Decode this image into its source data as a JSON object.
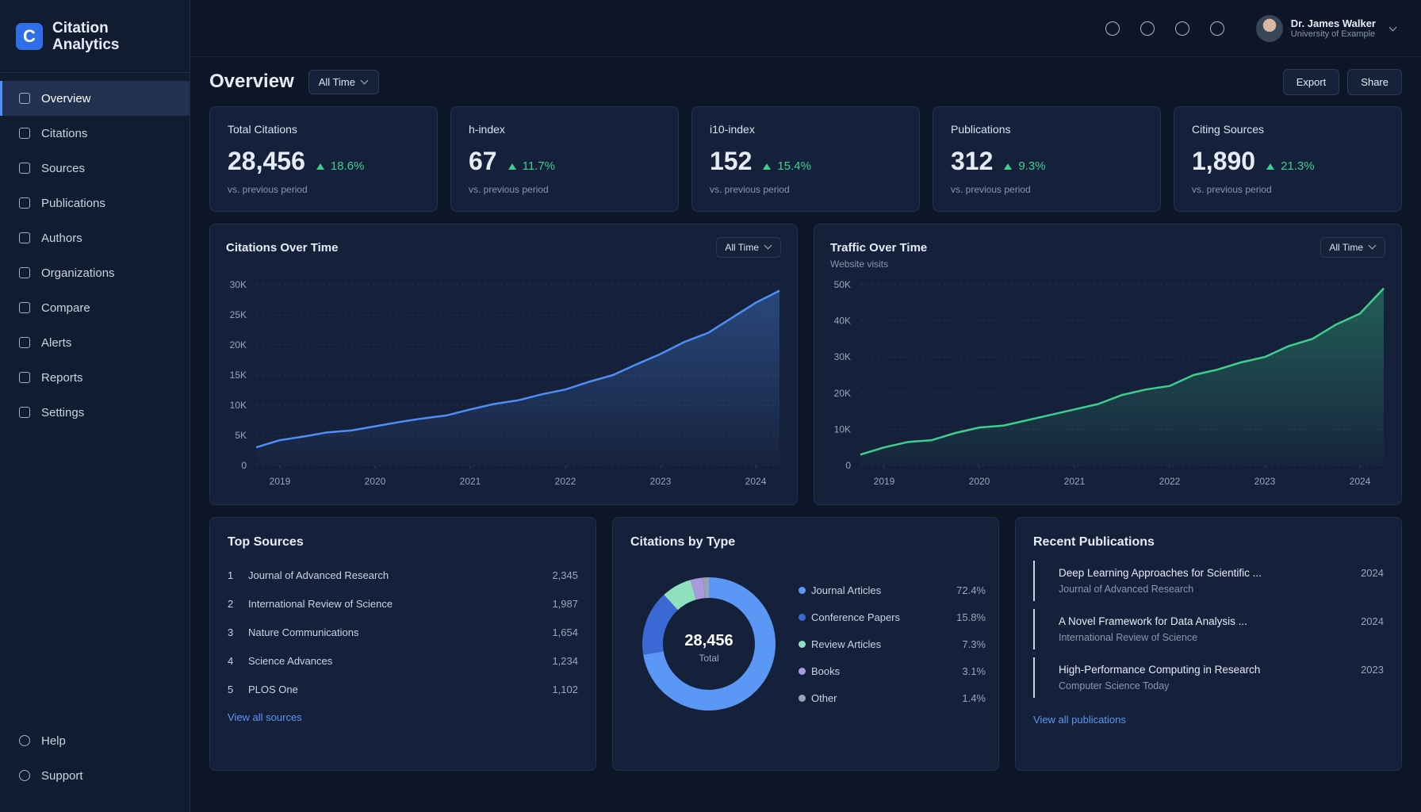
{
  "brand": {
    "logo": "C",
    "name": "Citation Analytics"
  },
  "nav": [
    "Overview",
    "Citations",
    "Sources",
    "Publications",
    "Authors",
    "Organizations",
    "Compare",
    "Alerts",
    "Reports",
    "Settings"
  ],
  "nav_bottom": [
    "Help",
    "Support"
  ],
  "user": {
    "name": "Dr. James Walker",
    "affiliation": "University of Example"
  },
  "header": {
    "title": "Overview",
    "filter": "All Time",
    "actions": [
      "Export",
      "Share"
    ]
  },
  "kpis": [
    {
      "label": "Total Citations",
      "value": "28,456",
      "change": "18.6%",
      "note": "vs. previous period"
    },
    {
      "label": "h-index",
      "value": "67",
      "change": "11.7%",
      "note": "vs. previous period"
    },
    {
      "label": "i10-index",
      "value": "152",
      "change": "15.4%",
      "note": "vs. previous period"
    },
    {
      "label": "Publications",
      "value": "312",
      "change": "9.3%",
      "note": "vs. previous period"
    },
    {
      "label": "Citing Sources",
      "value": "1,890",
      "change": "21.3%",
      "note": "vs. previous period"
    }
  ],
  "chart_data": [
    {
      "type": "line",
      "title": "Citations Over Time",
      "filter": "All Time",
      "color": "#4f8ef7",
      "x": [
        2018.75,
        2019,
        2019.25,
        2019.5,
        2019.75,
        2020,
        2020.25,
        2020.5,
        2020.75,
        2021,
        2021.25,
        2021.5,
        2021.75,
        2022,
        2022.25,
        2022.5,
        2022.75,
        2023,
        2023.25,
        2023.5,
        2023.75,
        2024,
        2024.25
      ],
      "values": [
        3000,
        4200,
        4800,
        5500,
        5800,
        6500,
        7200,
        7800,
        8300,
        9300,
        10200,
        10800,
        11800,
        12600,
        13900,
        15000,
        16800,
        18500,
        20500,
        22000,
        24500,
        27000,
        29000
      ],
      "xlim": [
        2018.75,
        2024.25
      ],
      "xticks": [
        2019,
        2020,
        2021,
        2022,
        2023,
        2024
      ],
      "ylim": [
        0,
        30000
      ],
      "yticks": [
        0,
        {
          "value": 5000,
          "label": "5K"
        },
        {
          "value": 10000,
          "label": "10K"
        },
        {
          "value": 15000,
          "label": "15K"
        },
        {
          "value": 20000,
          "label": "20K"
        },
        {
          "value": 25000,
          "label": "25K"
        },
        {
          "value": 30000,
          "label": "30K"
        }
      ],
      "grid": true
    },
    {
      "type": "line",
      "title": "Traffic Over Time",
      "subtitle": "Website visits",
      "filter": "All Time",
      "color": "#3ecf8e",
      "x": [
        2018.75,
        2019,
        2019.25,
        2019.5,
        2019.75,
        2020,
        2020.25,
        2020.5,
        2020.75,
        2021,
        2021.25,
        2021.5,
        2021.75,
        2022,
        2022.25,
        2022.5,
        2022.75,
        2023,
        2023.25,
        2023.5,
        2023.75,
        2024,
        2024.25
      ],
      "values": [
        3000,
        5000,
        6500,
        7000,
        9000,
        10500,
        11000,
        12500,
        14000,
        15500,
        17000,
        19500,
        21000,
        22000,
        25000,
        26500,
        28500,
        30000,
        33000,
        35000,
        39000,
        42000,
        49000
      ],
      "xlim": [
        2018.75,
        2024.25
      ],
      "xticks": [
        2019,
        2020,
        2021,
        2022,
        2023,
        2024
      ],
      "ylim": [
        0,
        50000
      ],
      "yticks": [
        0,
        {
          "value": 10000,
          "label": "10K"
        },
        {
          "value": 20000,
          "label": "20K"
        },
        {
          "value": 30000,
          "label": "30K"
        },
        {
          "value": 40000,
          "label": "40K"
        },
        {
          "value": 50000,
          "label": "50K"
        }
      ],
      "grid": true
    },
    {
      "type": "donut",
      "title": "Citations by Type",
      "center_label": "28,456",
      "center_sublabel": "Total",
      "categories": [
        "Journal Articles",
        "Conference Papers",
        "Review Articles",
        "Books",
        "Other"
      ],
      "values": [
        72.4,
        15.8,
        7.3,
        3.1,
        1.4
      ],
      "value_labels": [
        "72.4%",
        "15.8%",
        "7.3%",
        "3.1%",
        "1.4%"
      ],
      "colors": [
        "#5b97f5",
        "#3a68d4",
        "#8fe0bf",
        "#a99ae0",
        "#9aa3b5"
      ]
    }
  ],
  "top_sources": {
    "title": "Top Sources",
    "link": "View all sources",
    "rows": [
      {
        "rank": 1,
        "name": "Journal of Advanced Research",
        "count": "2,345"
      },
      {
        "rank": 2,
        "name": "International Review of Science",
        "count": "1,987"
      },
      {
        "rank": 3,
        "name": "Nature Communications",
        "count": "1,654"
      },
      {
        "rank": 4,
        "name": "Science Advances",
        "count": "1,234"
      },
      {
        "rank": 5,
        "name": "PLOS One",
        "count": "1,102"
      }
    ]
  },
  "recent_publications": {
    "title": "Recent Publications",
    "link": "View all publications",
    "items": [
      {
        "title": "Deep Learning Approaches for Scientific ...",
        "source": "Journal of Advanced Research",
        "year": "2024"
      },
      {
        "title": "A Novel Framework for Data Analysis ...",
        "source": "International Review of Science",
        "year": "2024"
      },
      {
        "title": "High-Performance Computing in Research",
        "source": "Computer Science Today",
        "year": "2023"
      }
    ]
  }
}
